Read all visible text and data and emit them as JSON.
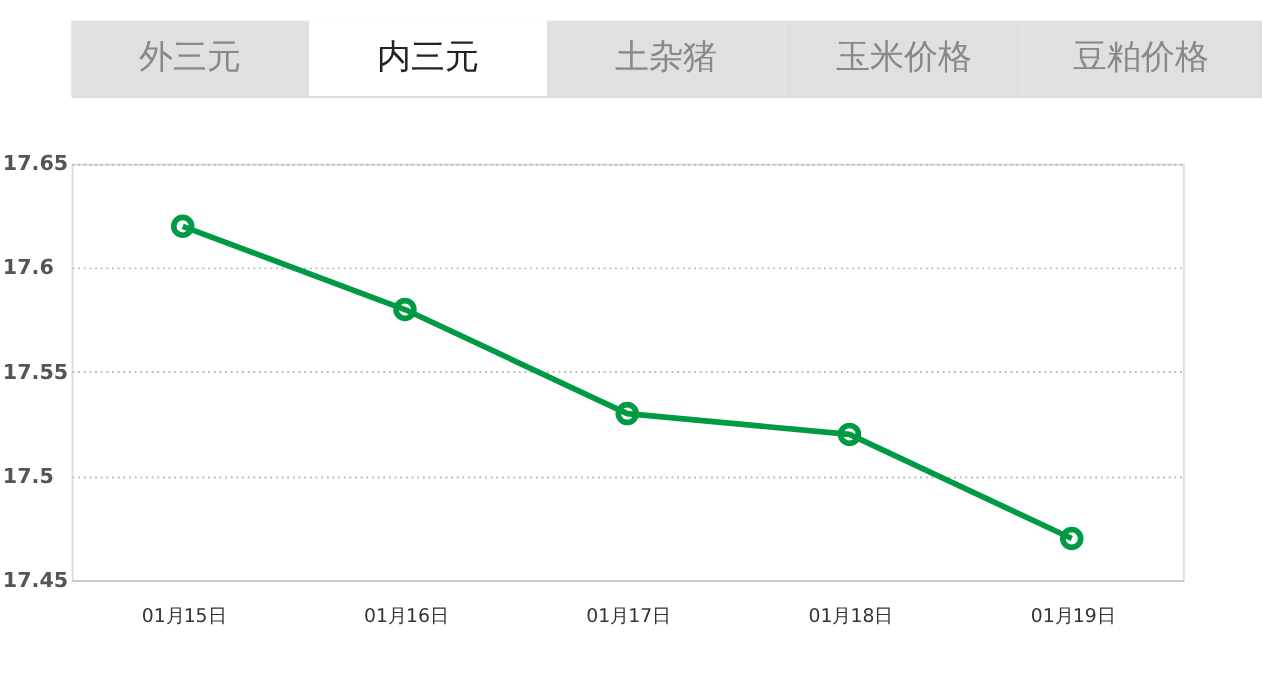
{
  "chart_data": {
    "type": "line",
    "annotations": [
      "外三元",
      "内三元",
      "土杂猪",
      "玉米价格",
      "豆粕价格"
    ],
    "categories": [
      "01月15日",
      "01月16日",
      "01月17日",
      "01月18日",
      "01月19日"
    ],
    "series": [
      {
        "color": "#009a44",
        "values": [
          17.62,
          17.58,
          17.53,
          17.52,
          17.47
        ]
      }
    ],
    "ylim": [
      17.45,
      17.65
    ],
    "yticks": [
      17.45,
      17.5,
      17.55,
      17.6,
      17.65
    ],
    "grid": "y",
    "marker": "circle",
    "line_style": "solid",
    "legend": false
  }
}
